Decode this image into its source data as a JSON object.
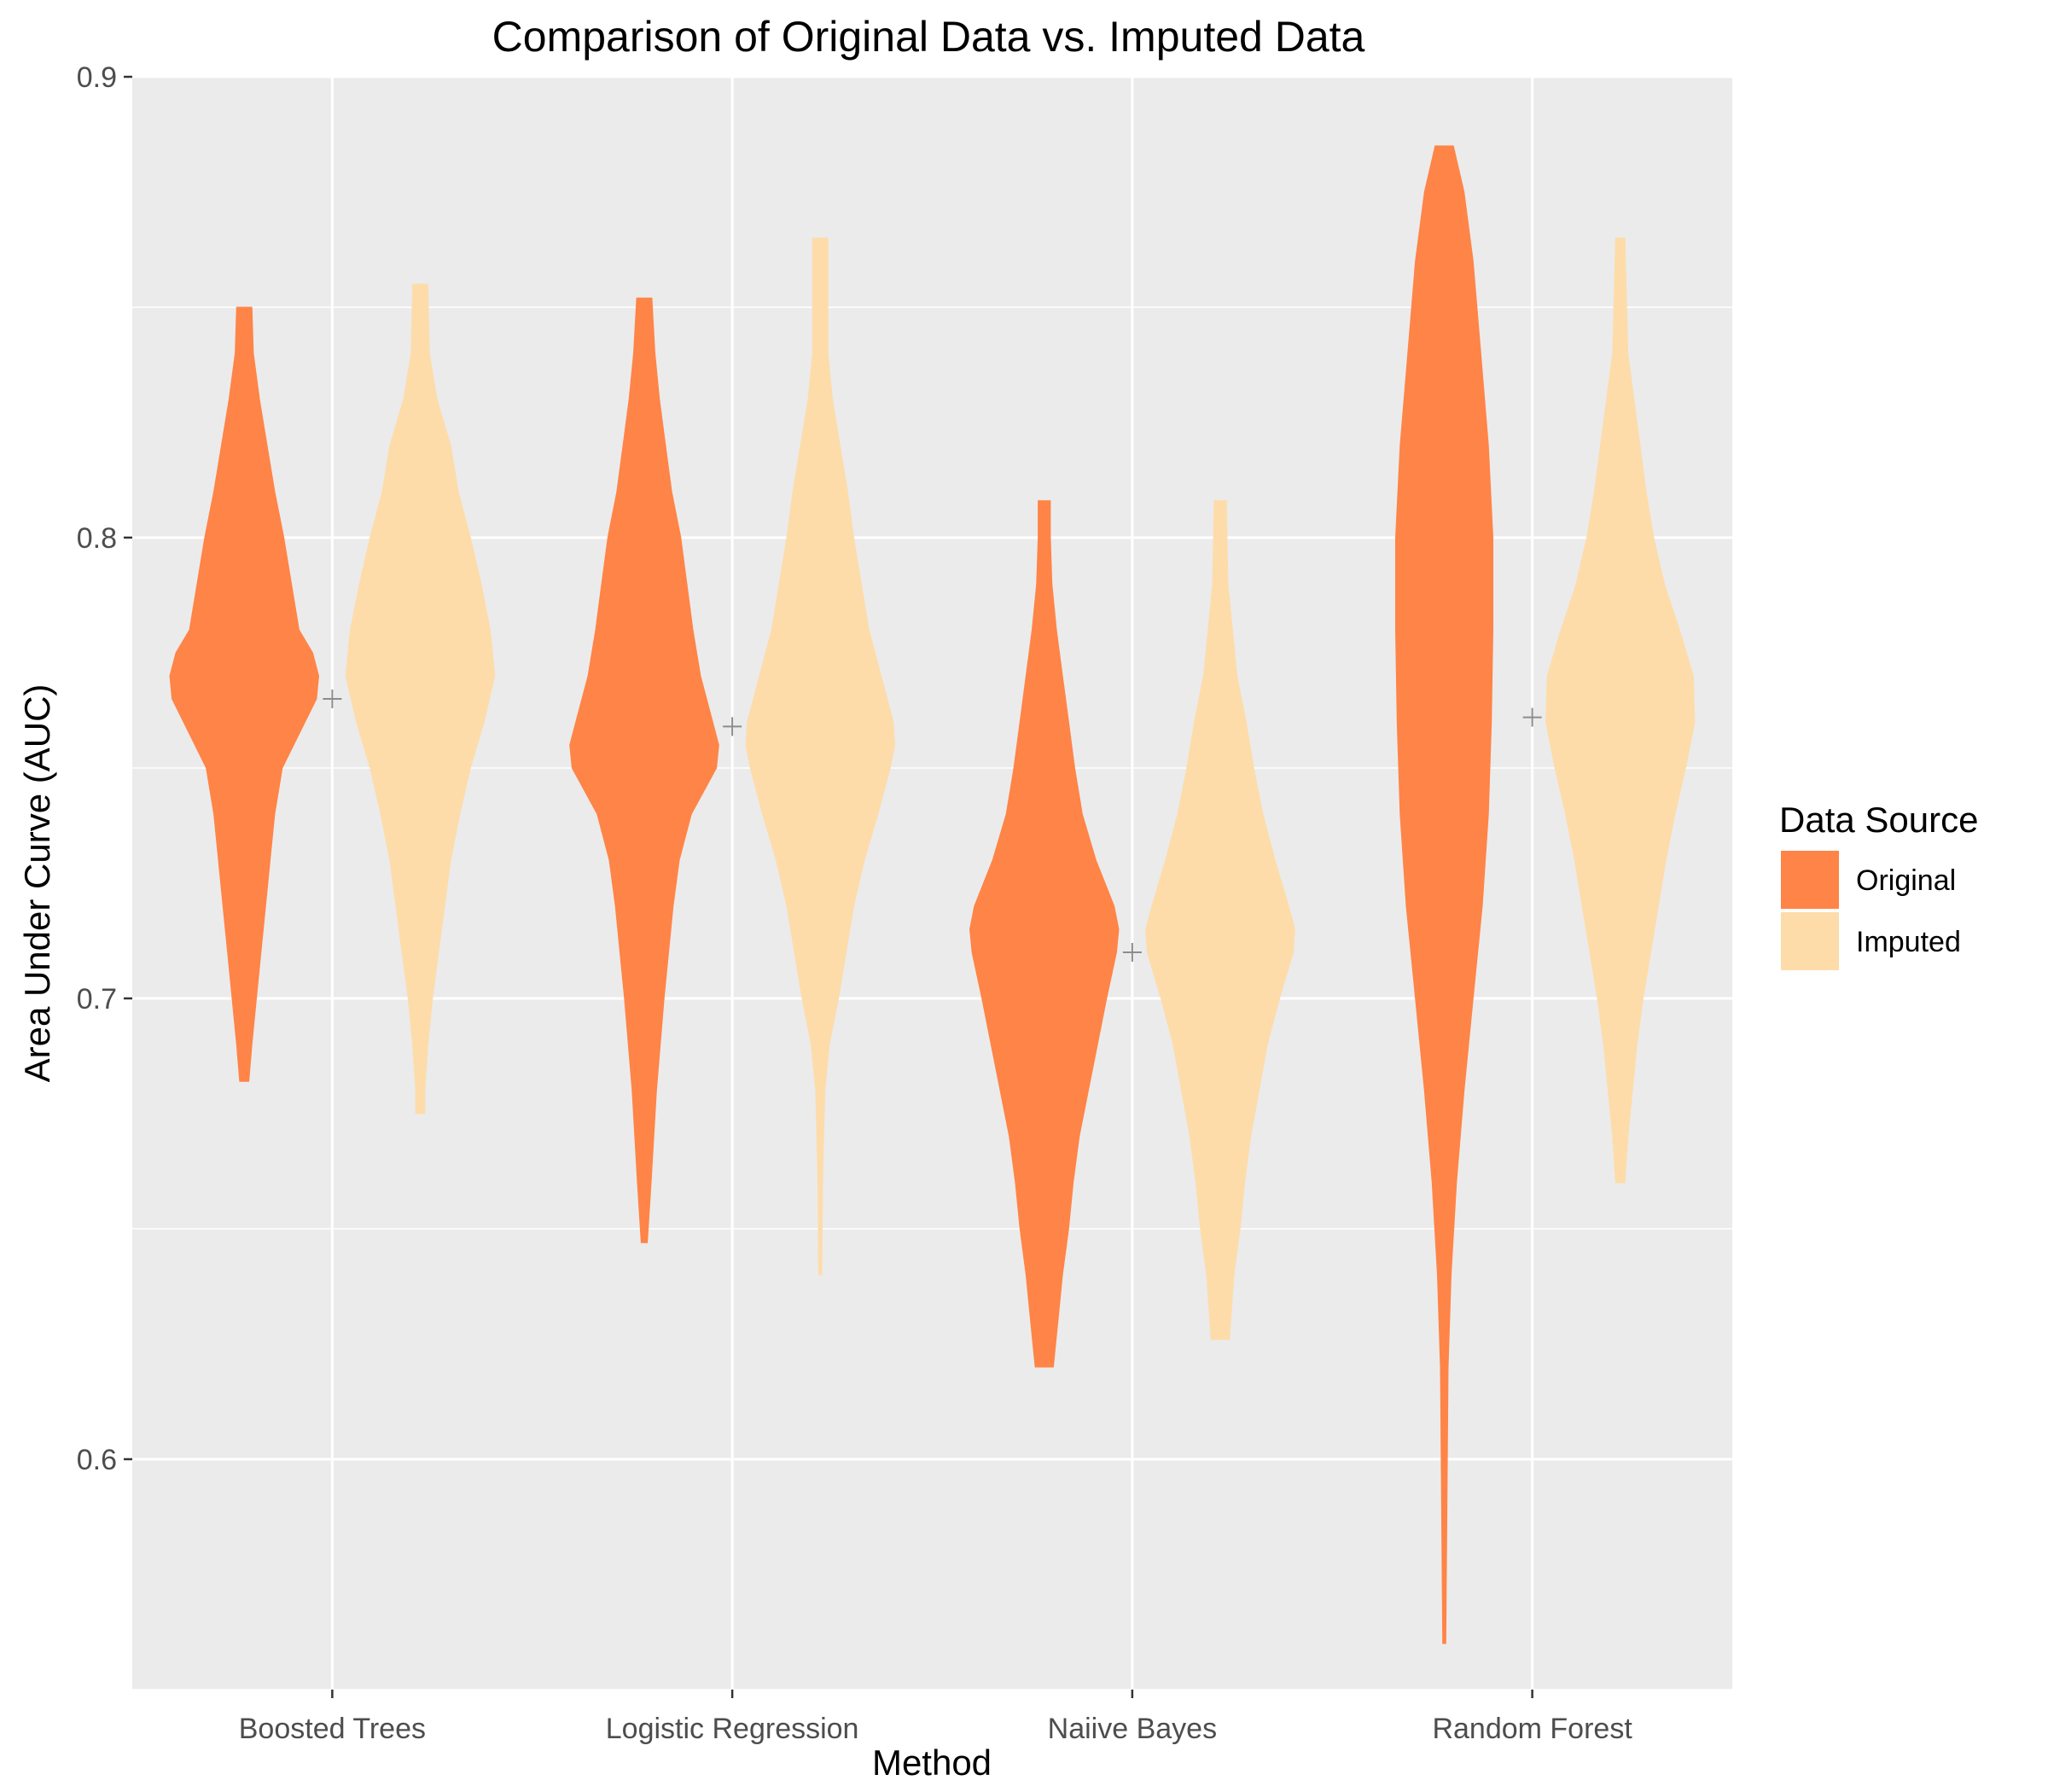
{
  "chart_data": {
    "type": "violin",
    "title": "Comparison of Original Data vs. Imputed Data",
    "xlabel": "Method",
    "ylabel": "Area Under Curve (AUC)",
    "categories": [
      "Boosted Trees",
      "Logistic Regression",
      "Naiive Bayes",
      "Random Forest"
    ],
    "ylim": [
      0.55,
      0.9
    ],
    "yticks": [
      0.6,
      0.7,
      0.8,
      0.9
    ],
    "grid": true,
    "legend": {
      "title": "Data Source",
      "position": "right",
      "entries": [
        "Original",
        "Imputed"
      ]
    },
    "colors": {
      "Original": "#ff8447",
      "Imputed": "#fddcaa",
      "panel": "#ebebeb",
      "grid": "#ffffff",
      "median_marker": "#8c8c8c"
    },
    "series": [
      {
        "name": "Original",
        "violins": [
          {
            "category": "Boosted Trees",
            "min": 0.682,
            "max": 0.85,
            "profile": [
              [
                0.682,
                0.06
              ],
              [
                0.69,
                0.1
              ],
              [
                0.7,
                0.16
              ],
              [
                0.71,
                0.22
              ],
              [
                0.72,
                0.28
              ],
              [
                0.73,
                0.34
              ],
              [
                0.74,
                0.4
              ],
              [
                0.75,
                0.5
              ],
              [
                0.76,
                0.8
              ],
              [
                0.765,
                0.95
              ],
              [
                0.77,
                0.98
              ],
              [
                0.775,
                0.9
              ],
              [
                0.78,
                0.72
              ],
              [
                0.79,
                0.62
              ],
              [
                0.8,
                0.52
              ],
              [
                0.81,
                0.4
              ],
              [
                0.82,
                0.3
              ],
              [
                0.83,
                0.2
              ],
              [
                0.84,
                0.12
              ],
              [
                0.85,
                0.1
              ]
            ]
          },
          {
            "category": "Logistic Regression",
            "min": 0.647,
            "max": 0.852,
            "profile": [
              [
                0.647,
                0.04
              ],
              [
                0.66,
                0.09
              ],
              [
                0.68,
                0.16
              ],
              [
                0.7,
                0.26
              ],
              [
                0.72,
                0.38
              ],
              [
                0.73,
                0.46
              ],
              [
                0.74,
                0.62
              ],
              [
                0.75,
                0.95
              ],
              [
                0.755,
                0.98
              ],
              [
                0.76,
                0.9
              ],
              [
                0.77,
                0.74
              ],
              [
                0.78,
                0.64
              ],
              [
                0.79,
                0.56
              ],
              [
                0.8,
                0.48
              ],
              [
                0.81,
                0.36
              ],
              [
                0.82,
                0.28
              ],
              [
                0.83,
                0.2
              ],
              [
                0.84,
                0.14
              ],
              [
                0.852,
                0.1
              ]
            ]
          },
          {
            "category": "Naiive Bayes",
            "min": 0.62,
            "max": 0.808,
            "profile": [
              [
                0.62,
                0.12
              ],
              [
                0.63,
                0.18
              ],
              [
                0.64,
                0.24
              ],
              [
                0.65,
                0.32
              ],
              [
                0.66,
                0.38
              ],
              [
                0.67,
                0.46
              ],
              [
                0.68,
                0.58
              ],
              [
                0.69,
                0.7
              ],
              [
                0.7,
                0.82
              ],
              [
                0.71,
                0.95
              ],
              [
                0.715,
                0.98
              ],
              [
                0.72,
                0.92
              ],
              [
                0.73,
                0.68
              ],
              [
                0.74,
                0.5
              ],
              [
                0.75,
                0.4
              ],
              [
                0.76,
                0.32
              ],
              [
                0.77,
                0.24
              ],
              [
                0.78,
                0.16
              ],
              [
                0.79,
                0.1
              ],
              [
                0.8,
                0.08
              ],
              [
                0.808,
                0.08
              ]
            ]
          },
          {
            "category": "Random Forest",
            "min": 0.56,
            "max": 0.885,
            "profile": [
              [
                0.56,
                0.02
              ],
              [
                0.58,
                0.03
              ],
              [
                0.6,
                0.04
              ],
              [
                0.62,
                0.05
              ],
              [
                0.64,
                0.09
              ],
              [
                0.66,
                0.16
              ],
              [
                0.68,
                0.26
              ],
              [
                0.7,
                0.38
              ],
              [
                0.72,
                0.5
              ],
              [
                0.74,
                0.58
              ],
              [
                0.76,
                0.62
              ],
              [
                0.78,
                0.64
              ],
              [
                0.8,
                0.64
              ],
              [
                0.82,
                0.58
              ],
              [
                0.84,
                0.48
              ],
              [
                0.86,
                0.38
              ],
              [
                0.875,
                0.26
              ],
              [
                0.885,
                0.12
              ]
            ]
          }
        ]
      },
      {
        "name": "Imputed",
        "violins": [
          {
            "category": "Boosted Trees",
            "min": 0.675,
            "max": 0.855,
            "profile": [
              [
                0.675,
                0.06
              ],
              [
                0.68,
                0.06
              ],
              [
                0.69,
                0.1
              ],
              [
                0.7,
                0.16
              ],
              [
                0.71,
                0.24
              ],
              [
                0.72,
                0.32
              ],
              [
                0.73,
                0.4
              ],
              [
                0.74,
                0.52
              ],
              [
                0.75,
                0.66
              ],
              [
                0.76,
                0.84
              ],
              [
                0.77,
                0.98
              ],
              [
                0.78,
                0.92
              ],
              [
                0.79,
                0.8
              ],
              [
                0.8,
                0.66
              ],
              [
                0.81,
                0.5
              ],
              [
                0.82,
                0.4
              ],
              [
                0.83,
                0.22
              ],
              [
                0.84,
                0.12
              ],
              [
                0.855,
                0.1
              ]
            ]
          },
          {
            "category": "Logistic Regression",
            "min": 0.64,
            "max": 0.865,
            "profile": [
              [
                0.64,
                0.02
              ],
              [
                0.66,
                0.03
              ],
              [
                0.68,
                0.06
              ],
              [
                0.69,
                0.12
              ],
              [
                0.7,
                0.24
              ],
              [
                0.72,
                0.44
              ],
              [
                0.73,
                0.58
              ],
              [
                0.74,
                0.76
              ],
              [
                0.75,
                0.92
              ],
              [
                0.755,
                0.98
              ],
              [
                0.76,
                0.96
              ],
              [
                0.77,
                0.8
              ],
              [
                0.78,
                0.64
              ],
              [
                0.79,
                0.54
              ],
              [
                0.8,
                0.44
              ],
              [
                0.81,
                0.36
              ],
              [
                0.82,
                0.26
              ],
              [
                0.83,
                0.16
              ],
              [
                0.84,
                0.1
              ],
              [
                0.865,
                0.1
              ]
            ]
          },
          {
            "category": "Naiive Bayes",
            "min": 0.626,
            "max": 0.808,
            "profile": [
              [
                0.626,
                0.12
              ],
              [
                0.64,
                0.18
              ],
              [
                0.65,
                0.26
              ],
              [
                0.66,
                0.32
              ],
              [
                0.67,
                0.4
              ],
              [
                0.69,
                0.62
              ],
              [
                0.7,
                0.78
              ],
              [
                0.71,
                0.96
              ],
              [
                0.715,
                0.98
              ],
              [
                0.72,
                0.9
              ],
              [
                0.73,
                0.72
              ],
              [
                0.74,
                0.56
              ],
              [
                0.75,
                0.44
              ],
              [
                0.76,
                0.34
              ],
              [
                0.77,
                0.22
              ],
              [
                0.78,
                0.16
              ],
              [
                0.79,
                0.1
              ],
              [
                0.808,
                0.08
              ]
            ]
          },
          {
            "category": "Random Forest",
            "min": 0.66,
            "max": 0.865,
            "profile": [
              [
                0.66,
                0.06
              ],
              [
                0.67,
                0.1
              ],
              [
                0.68,
                0.16
              ],
              [
                0.69,
                0.22
              ],
              [
                0.7,
                0.3
              ],
              [
                0.71,
                0.4
              ],
              [
                0.72,
                0.5
              ],
              [
                0.73,
                0.6
              ],
              [
                0.74,
                0.72
              ],
              [
                0.75,
                0.86
              ],
              [
                0.76,
                0.98
              ],
              [
                0.77,
                0.96
              ],
              [
                0.78,
                0.78
              ],
              [
                0.79,
                0.58
              ],
              [
                0.8,
                0.44
              ],
              [
                0.81,
                0.34
              ],
              [
                0.82,
                0.26
              ],
              [
                0.83,
                0.18
              ],
              [
                0.84,
                0.1
              ],
              [
                0.865,
                0.06
              ]
            ]
          }
        ]
      }
    ],
    "group_markers": [
      {
        "category": "Boosted Trees",
        "value": 0.765
      },
      {
        "category": "Logistic Regression",
        "value": 0.759
      },
      {
        "category": "Naiive Bayes",
        "value": 0.71
      },
      {
        "category": "Random Forest",
        "value": 0.761
      }
    ]
  }
}
